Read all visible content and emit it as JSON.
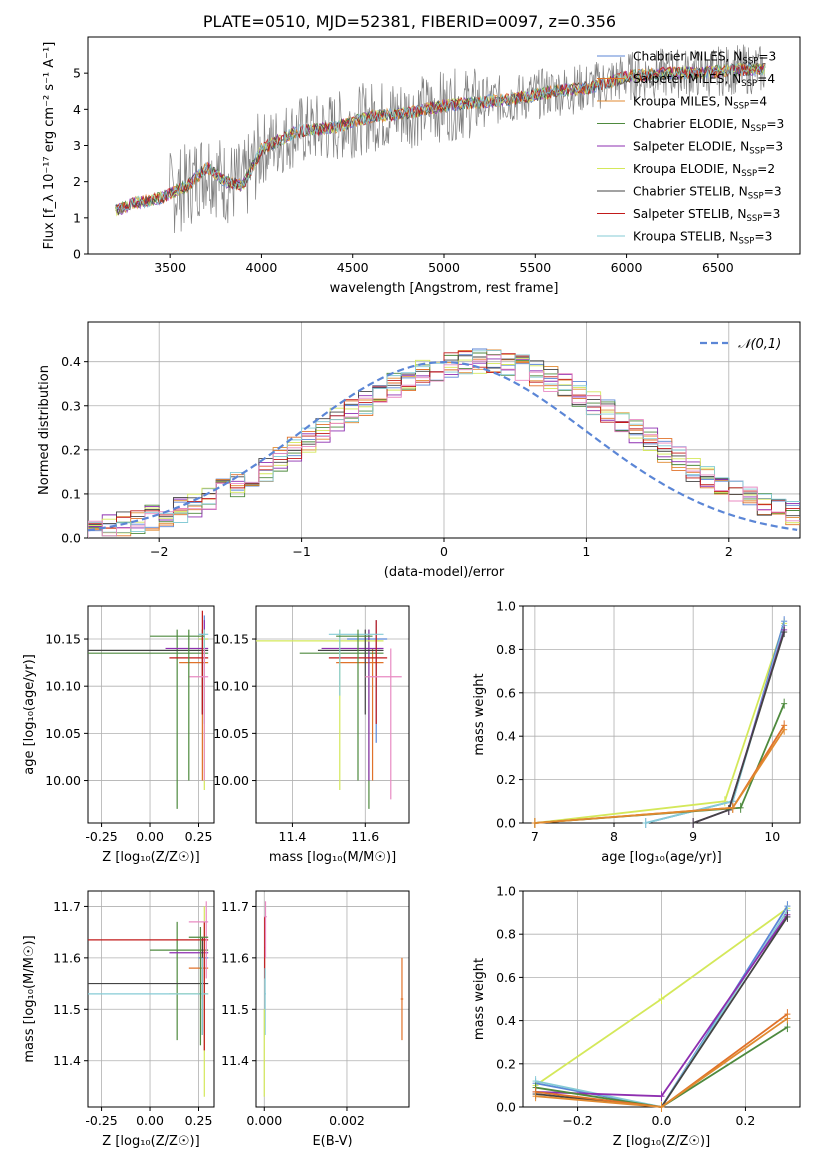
{
  "title": "PLATE=0510, MJD=52381, FIBERID=0097, z=0.356",
  "colors": {
    "Chabrier MILES": "#5b86d6",
    "Salpeter MILES": "#e0722a",
    "Kroupa MILES": "#e08a30",
    "Chabrier ELODIE": "#4e8a3e",
    "Salpeter ELODIE": "#8e2fb0",
    "Kroupa ELODIE": "#d4e85a",
    "Chabrier STELIB": "#444444",
    "Salpeter STELIB": "#c21a1a",
    "Kroupa STELIB": "#86cbd6",
    "data": "#808080",
    "gauss": "#5b86d6"
  },
  "chart_data": [
    {
      "id": "spectrum",
      "type": "line",
      "xlabel": "wavelength [Angstrom, rest frame]",
      "ylabel": "Flux [f_λ 10⁻¹⁷ erg cm⁻² s⁻¹ A⁻¹]",
      "xlim": [
        3050,
        6950
      ],
      "ylim": [
        0,
        6
      ],
      "xticks": [
        3500,
        4000,
        4500,
        5000,
        5500,
        6000,
        6500
      ],
      "yticks": [
        0,
        1,
        2,
        3,
        4,
        5
      ],
      "legend_position": "top-right",
      "legend": [
        {
          "name": "Chabrier MILES",
          "nssp": "3"
        },
        {
          "name": "Salpeter MILES",
          "nssp": "4"
        },
        {
          "name": "Kroupa MILES",
          "nssp": "4"
        },
        {
          "name": "Chabrier ELODIE",
          "nssp": "3"
        },
        {
          "name": "Salpeter ELODIE",
          "nssp": "3"
        },
        {
          "name": "Kroupa ELODIE",
          "nssp": "2"
        },
        {
          "name": "Chabrier STELIB",
          "nssp": "3"
        },
        {
          "name": "Salpeter STELIB",
          "nssp": "3"
        },
        {
          "name": "Kroupa STELIB",
          "nssp": "3"
        }
      ],
      "model_trend": [
        [
          3200,
          1.2
        ],
        [
          3300,
          1.4
        ],
        [
          3450,
          1.55
        ],
        [
          3600,
          1.9
        ],
        [
          3700,
          2.4
        ],
        [
          3800,
          2.0
        ],
        [
          3900,
          1.9
        ],
        [
          4000,
          2.9
        ],
        [
          4200,
          3.4
        ],
        [
          4400,
          3.5
        ],
        [
          4600,
          3.8
        ],
        [
          4800,
          3.9
        ],
        [
          5000,
          4.1
        ],
        [
          5200,
          4.2
        ],
        [
          5400,
          4.3
        ],
        [
          5600,
          4.5
        ],
        [
          5800,
          4.6
        ],
        [
          6000,
          4.9
        ],
        [
          6200,
          5.0
        ],
        [
          6400,
          5.0
        ],
        [
          6600,
          5.1
        ],
        [
          6760,
          5.1
        ]
      ]
    },
    {
      "id": "residuals",
      "type": "area",
      "xlabel": "(data-model)/error",
      "ylabel": "Normed distribution",
      "xlim": [
        -2.5,
        2.5
      ],
      "ylim": [
        0,
        0.49
      ],
      "xticks": [
        -2,
        -1,
        0,
        1,
        2
      ],
      "yticks": [
        0.0,
        0.1,
        0.2,
        0.3,
        0.4
      ],
      "legend": "𝒩(0,1)",
      "legend_position": "top-right",
      "grid": true
    },
    {
      "id": "age-vs-Z",
      "type": "scatter",
      "xlabel": "Z [log₁₀(Z/Z☉)]",
      "ylabel": "age  [log₁₀(age/yr)]",
      "xlim": [
        -0.32,
        0.33
      ],
      "ylim": [
        9.955,
        10.185
      ],
      "xticks": [
        -0.25,
        0.0,
        0.25
      ],
      "yticks": [
        10.0,
        10.05,
        10.1,
        10.15
      ],
      "grid": true
    },
    {
      "id": "age-vs-mass",
      "type": "scatter",
      "xlabel": "mass [log₁₀(M/M☉)]",
      "xlim": [
        11.3,
        11.72
      ],
      "ylim": [
        9.955,
        10.185
      ],
      "xticks": [
        11.4,
        11.6
      ],
      "yticks": [
        10.0,
        10.05,
        10.1,
        10.15
      ],
      "grid": true
    },
    {
      "id": "weight-vs-age",
      "type": "line",
      "xlabel": "age  [log₁₀(age/yr)]",
      "ylabel": "mass weight",
      "xlim": [
        6.85,
        10.35
      ],
      "ylim": [
        0,
        1.0
      ],
      "xticks": [
        7,
        8,
        9,
        10
      ],
      "yticks": [
        0.0,
        0.2,
        0.4,
        0.6,
        0.8,
        1.0
      ],
      "grid": true,
      "series": [
        {
          "name": "Kroupa ELODIE",
          "x": [
            7.0,
            9.4,
            10.15
          ],
          "y": [
            0.0,
            0.1,
            0.92
          ]
        },
        {
          "name": "Chabrier MILES",
          "x": [
            8.4,
            9.5,
            10.15
          ],
          "y": [
            0.0,
            0.1,
            0.93
          ]
        },
        {
          "name": "Kroupa STELIB",
          "x": [
            8.4,
            9.5,
            10.15
          ],
          "y": [
            0.0,
            0.1,
            0.91
          ]
        },
        {
          "name": "Salpeter ELODIE",
          "x": [
            9.0,
            9.45,
            10.15
          ],
          "y": [
            0.0,
            0.06,
            0.89
          ]
        },
        {
          "name": "Chabrier STELIB",
          "x": [
            9.0,
            9.45,
            10.15
          ],
          "y": [
            0.0,
            0.06,
            0.88
          ]
        },
        {
          "name": "Chabrier ELODIE",
          "x": [
            7.0,
            9.6,
            10.15
          ],
          "y": [
            0.0,
            0.07,
            0.55
          ]
        },
        {
          "name": "Salpeter MILES",
          "x": [
            7.0,
            9.5,
            10.15
          ],
          "y": [
            0.0,
            0.07,
            0.45
          ]
        },
        {
          "name": "Kroupa MILES",
          "x": [
            7.0,
            9.5,
            10.15
          ],
          "y": [
            0.0,
            0.07,
            0.43
          ]
        }
      ]
    },
    {
      "id": "mass-vs-Z",
      "type": "scatter",
      "xlabel": "Z [log₁₀(Z/Z☉)]",
      "ylabel": "mass [log₁₀(M/M☉)]",
      "xlim": [
        -0.32,
        0.33
      ],
      "ylim": [
        11.31,
        11.73
      ],
      "xticks": [
        -0.25,
        0.0,
        0.25
      ],
      "yticks": [
        11.4,
        11.5,
        11.6,
        11.7
      ],
      "grid": true
    },
    {
      "id": "mass-vs-EBV",
      "type": "scatter",
      "xlabel": "E(B-V)",
      "xlim": [
        -0.0002,
        0.0035
      ],
      "ylim": [
        11.31,
        11.73
      ],
      "xticks": [
        0.0,
        0.002
      ],
      "yticks": [
        11.4,
        11.5,
        11.6,
        11.7
      ],
      "grid": true
    },
    {
      "id": "weight-vs-Z",
      "type": "line",
      "xlabel": "Z [log₁₀(Z/Z☉)]",
      "ylabel": "mass weight",
      "xlim": [
        -0.33,
        0.33
      ],
      "ylim": [
        0,
        1.0
      ],
      "xticks": [
        -0.2,
        0.0,
        0.2
      ],
      "yticks": [
        0.0,
        0.2,
        0.4,
        0.6,
        0.8,
        1.0
      ],
      "grid": true,
      "series": [
        {
          "name": "Kroupa ELODIE",
          "x": [
            -0.3,
            0.0,
            0.3
          ],
          "y": [
            0.1,
            0.5,
            0.92
          ]
        },
        {
          "name": "Chabrier MILES",
          "x": [
            -0.3,
            0.0,
            0.3
          ],
          "y": [
            0.11,
            0.0,
            0.93
          ]
        },
        {
          "name": "Kroupa STELIB",
          "x": [
            -0.3,
            0.0,
            0.3
          ],
          "y": [
            0.12,
            0.0,
            0.91
          ]
        },
        {
          "name": "Salpeter ELODIE",
          "x": [
            -0.3,
            0.0,
            0.3
          ],
          "y": [
            0.07,
            0.05,
            0.89
          ]
        },
        {
          "name": "Chabrier STELIB",
          "x": [
            -0.3,
            0.0,
            0.3
          ],
          "y": [
            0.06,
            0.0,
            0.88
          ]
        },
        {
          "name": "Chabrier ELODIE",
          "x": [
            -0.3,
            0.0,
            0.3
          ],
          "y": [
            0.09,
            0.0,
            0.37
          ]
        },
        {
          "name": "Salpeter MILES",
          "x": [
            -0.3,
            0.0,
            0.3
          ],
          "y": [
            0.07,
            0.0,
            0.43
          ]
        },
        {
          "name": "Kroupa MILES",
          "x": [
            -0.3,
            0.0,
            0.3
          ],
          "y": [
            0.05,
            0.0,
            0.41
          ]
        }
      ]
    }
  ]
}
